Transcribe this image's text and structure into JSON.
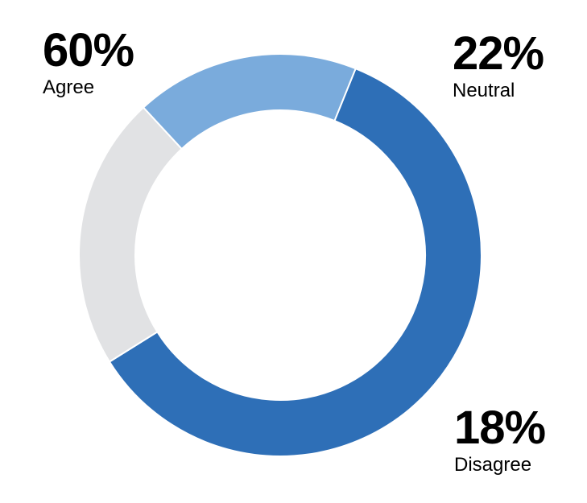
{
  "chart_data": {
    "type": "pie",
    "variant": "donut",
    "slices": [
      {
        "label": "Agree",
        "value": 60,
        "display": "60%",
        "color": "#2e6fb7"
      },
      {
        "label": "Neutral",
        "value": 22,
        "display": "22%",
        "color": "#e1e2e4"
      },
      {
        "label": "Disagree",
        "value": 18,
        "display": "18%",
        "color": "#7aabdc"
      }
    ],
    "title": "",
    "legend": "none"
  }
}
